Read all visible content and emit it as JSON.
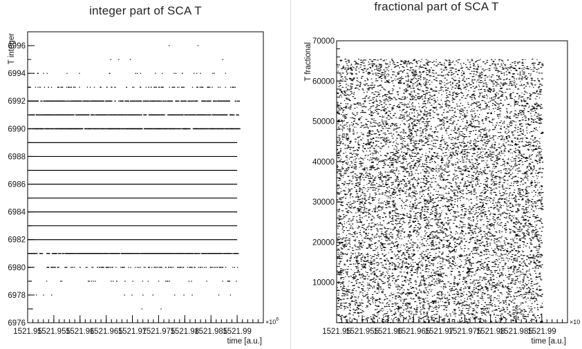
{
  "chart_data": [
    {
      "type": "scatter",
      "title": "integer part of SCA T",
      "xlabel": "time [a.u.]",
      "ylabel": "T integer",
      "x_exponent_label": "×10",
      "x_exponent_power": "6",
      "xlim": [
        1521.95,
        1521.995
      ],
      "ylim": [
        6976,
        6997
      ],
      "x_tick_labels": [
        "1521.95",
        "1521.955",
        "1521.96",
        "1521.965",
        "1521.97",
        "1521.975",
        "1521.98",
        "1521.985",
        "1521.99"
      ],
      "x_tick_values": [
        1521.95,
        1521.955,
        1521.96,
        1521.965,
        1521.97,
        1521.975,
        1521.98,
        1521.985,
        1521.99
      ],
      "y_ticks": [
        6976,
        6978,
        6980,
        6982,
        6984,
        6986,
        6988,
        6990,
        6992,
        6994,
        6996
      ],
      "x_range_data": [
        1521.95,
        1521.99
      ],
      "rows": [
        {
          "y": 6977,
          "density": 0.01
        },
        {
          "y": 6978,
          "density": 0.03
        },
        {
          "y": 6979,
          "density": 0.08
        },
        {
          "y": 6980,
          "density": 0.35
        },
        {
          "y": 6981,
          "density": 0.85
        },
        {
          "y": 6982,
          "density": 1.0
        },
        {
          "y": 6983,
          "density": 1.0
        },
        {
          "y": 6984,
          "density": 1.0
        },
        {
          "y": 6985,
          "density": 1.0
        },
        {
          "y": 6986,
          "density": 1.0
        },
        {
          "y": 6987,
          "density": 1.0
        },
        {
          "y": 6988,
          "density": 1.0
        },
        {
          "y": 6989,
          "density": 1.0
        },
        {
          "y": 6990,
          "density": 0.98
        },
        {
          "y": 6991,
          "density": 0.85
        },
        {
          "y": 6992,
          "density": 0.55
        },
        {
          "y": 6993,
          "density": 0.25
        },
        {
          "y": 6994,
          "density": 0.06
        },
        {
          "y": 6995,
          "density": 0.01
        },
        {
          "y": 6996,
          "density": 0.005
        }
      ]
    },
    {
      "type": "scatter",
      "title": "fractional part of SCA T",
      "xlabel": "time [a.u.]",
      "ylabel": "T fractional",
      "x_exponent_label": "×10",
      "xlim": [
        1521.95,
        1521.995
      ],
      "ylim": [
        0,
        70000
      ],
      "x_tick_labels": [
        "1521.95",
        "1521.955",
        "1521.96",
        "1521.965",
        "1521.97",
        "1521.975",
        "1521.98",
        "1521.985",
        "1521.99"
      ],
      "x_tick_values": [
        1521.95,
        1521.955,
        1521.96,
        1521.965,
        1521.97,
        1521.975,
        1521.98,
        1521.985,
        1521.99
      ],
      "y_tick_labels": [
        "10000",
        "20000",
        "30000",
        "40000",
        "50000",
        "60000",
        "70000"
      ],
      "y_tick_values": [
        10000,
        20000,
        30000,
        40000,
        50000,
        60000,
        70000
      ],
      "x_range_data": [
        1521.95,
        1521.99
      ],
      "y_range_data": [
        0,
        65535
      ]
    }
  ]
}
